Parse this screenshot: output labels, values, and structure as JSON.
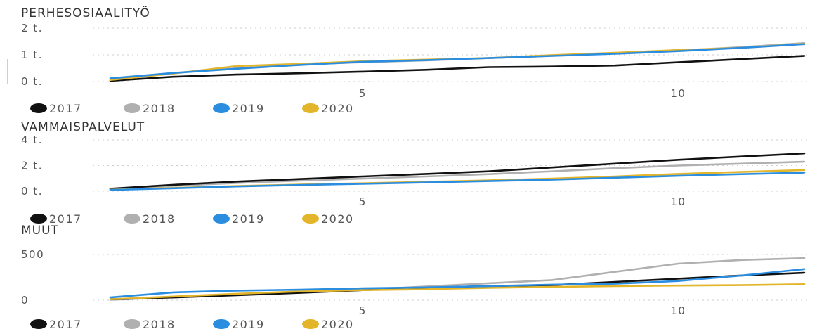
{
  "colors": {
    "2017": "#111111",
    "2018": "#b0b0b0",
    "2019": "#2a8de0",
    "2020": "#e2b52b"
  },
  "chart_data": [
    {
      "type": "line",
      "title": "PERHESOSIAALITYÖ",
      "x": [
        1,
        2,
        3,
        4,
        5,
        6,
        7,
        8,
        9,
        10,
        11,
        12
      ],
      "xticks": [
        5,
        10
      ],
      "ylim": [
        0,
        2000
      ],
      "yticks": [
        0,
        1000,
        2000
      ],
      "yticklabels": [
        "0 t.",
        "1 t.",
        "2 t."
      ],
      "grid": true,
      "legend": "bottom-left",
      "series": [
        {
          "name": "2017",
          "values": [
            30,
            180,
            260,
            310,
            370,
            440,
            540,
            560,
            600,
            720,
            840,
            960
          ]
        },
        {
          "name": "2018",
          "values": [
            100,
            320,
            500,
            640,
            720,
            790,
            880,
            960,
            1060,
            1160,
            1290,
            1440
          ]
        },
        {
          "name": "2019",
          "values": [
            120,
            320,
            480,
            620,
            740,
            800,
            880,
            960,
            1040,
            1140,
            1260,
            1400
          ]
        },
        {
          "name": "2020",
          "values": [
            60,
            300,
            580,
            660,
            760,
            820,
            880,
            990,
            1080,
            1180,
            1260,
            1410
          ]
        }
      ]
    },
    {
      "type": "line",
      "title": "VAMMAISPALVELUT",
      "x": [
        1,
        2,
        3,
        4,
        5,
        6,
        7,
        8,
        9,
        10,
        11,
        12
      ],
      "xticks": [
        5,
        10
      ],
      "ylim": [
        0,
        4000
      ],
      "yticks": [
        0,
        2000,
        4000
      ],
      "yticklabels": [
        "0 t.",
        "2 t.",
        "4 t."
      ],
      "grid": true,
      "legend": "bottom-left",
      "series": [
        {
          "name": "2017",
          "values": [
            200,
            500,
            750,
            950,
            1150,
            1350,
            1550,
            1850,
            2150,
            2450,
            2700,
            2950
          ]
        },
        {
          "name": "2018",
          "values": [
            150,
            420,
            640,
            820,
            980,
            1150,
            1330,
            1550,
            1800,
            2000,
            2150,
            2300
          ]
        },
        {
          "name": "2019",
          "values": [
            100,
            230,
            370,
            480,
            580,
            680,
            790,
            900,
            1050,
            1200,
            1330,
            1450
          ]
        },
        {
          "name": "2020",
          "values": [
            120,
            260,
            400,
            520,
            620,
            730,
            850,
            980,
            1150,
            1350,
            1500,
            1650
          ]
        }
      ]
    },
    {
      "type": "line",
      "title": "MUUT",
      "x": [
        1,
        2,
        3,
        4,
        5,
        6,
        7,
        8,
        9,
        10,
        11,
        12
      ],
      "xticks": [
        5,
        10
      ],
      "ylim": [
        0,
        500
      ],
      "yticks": [
        0,
        500
      ],
      "yticklabels": [
        "0",
        "500"
      ],
      "grid": true,
      "legend": "bottom-left",
      "series": [
        {
          "name": "2017",
          "values": [
            10,
            30,
            55,
            80,
            110,
            135,
            155,
            165,
            200,
            235,
            270,
            300
          ]
        },
        {
          "name": "2018",
          "values": [
            5,
            30,
            60,
            90,
            115,
            150,
            185,
            220,
            310,
            400,
            440,
            460
          ]
        },
        {
          "name": "2019",
          "values": [
            30,
            85,
            105,
            115,
            130,
            140,
            155,
            170,
            180,
            210,
            270,
            340
          ]
        },
        {
          "name": "2020",
          "values": [
            10,
            40,
            70,
            95,
            110,
            120,
            135,
            145,
            155,
            160,
            165,
            175
          ]
        }
      ]
    }
  ]
}
